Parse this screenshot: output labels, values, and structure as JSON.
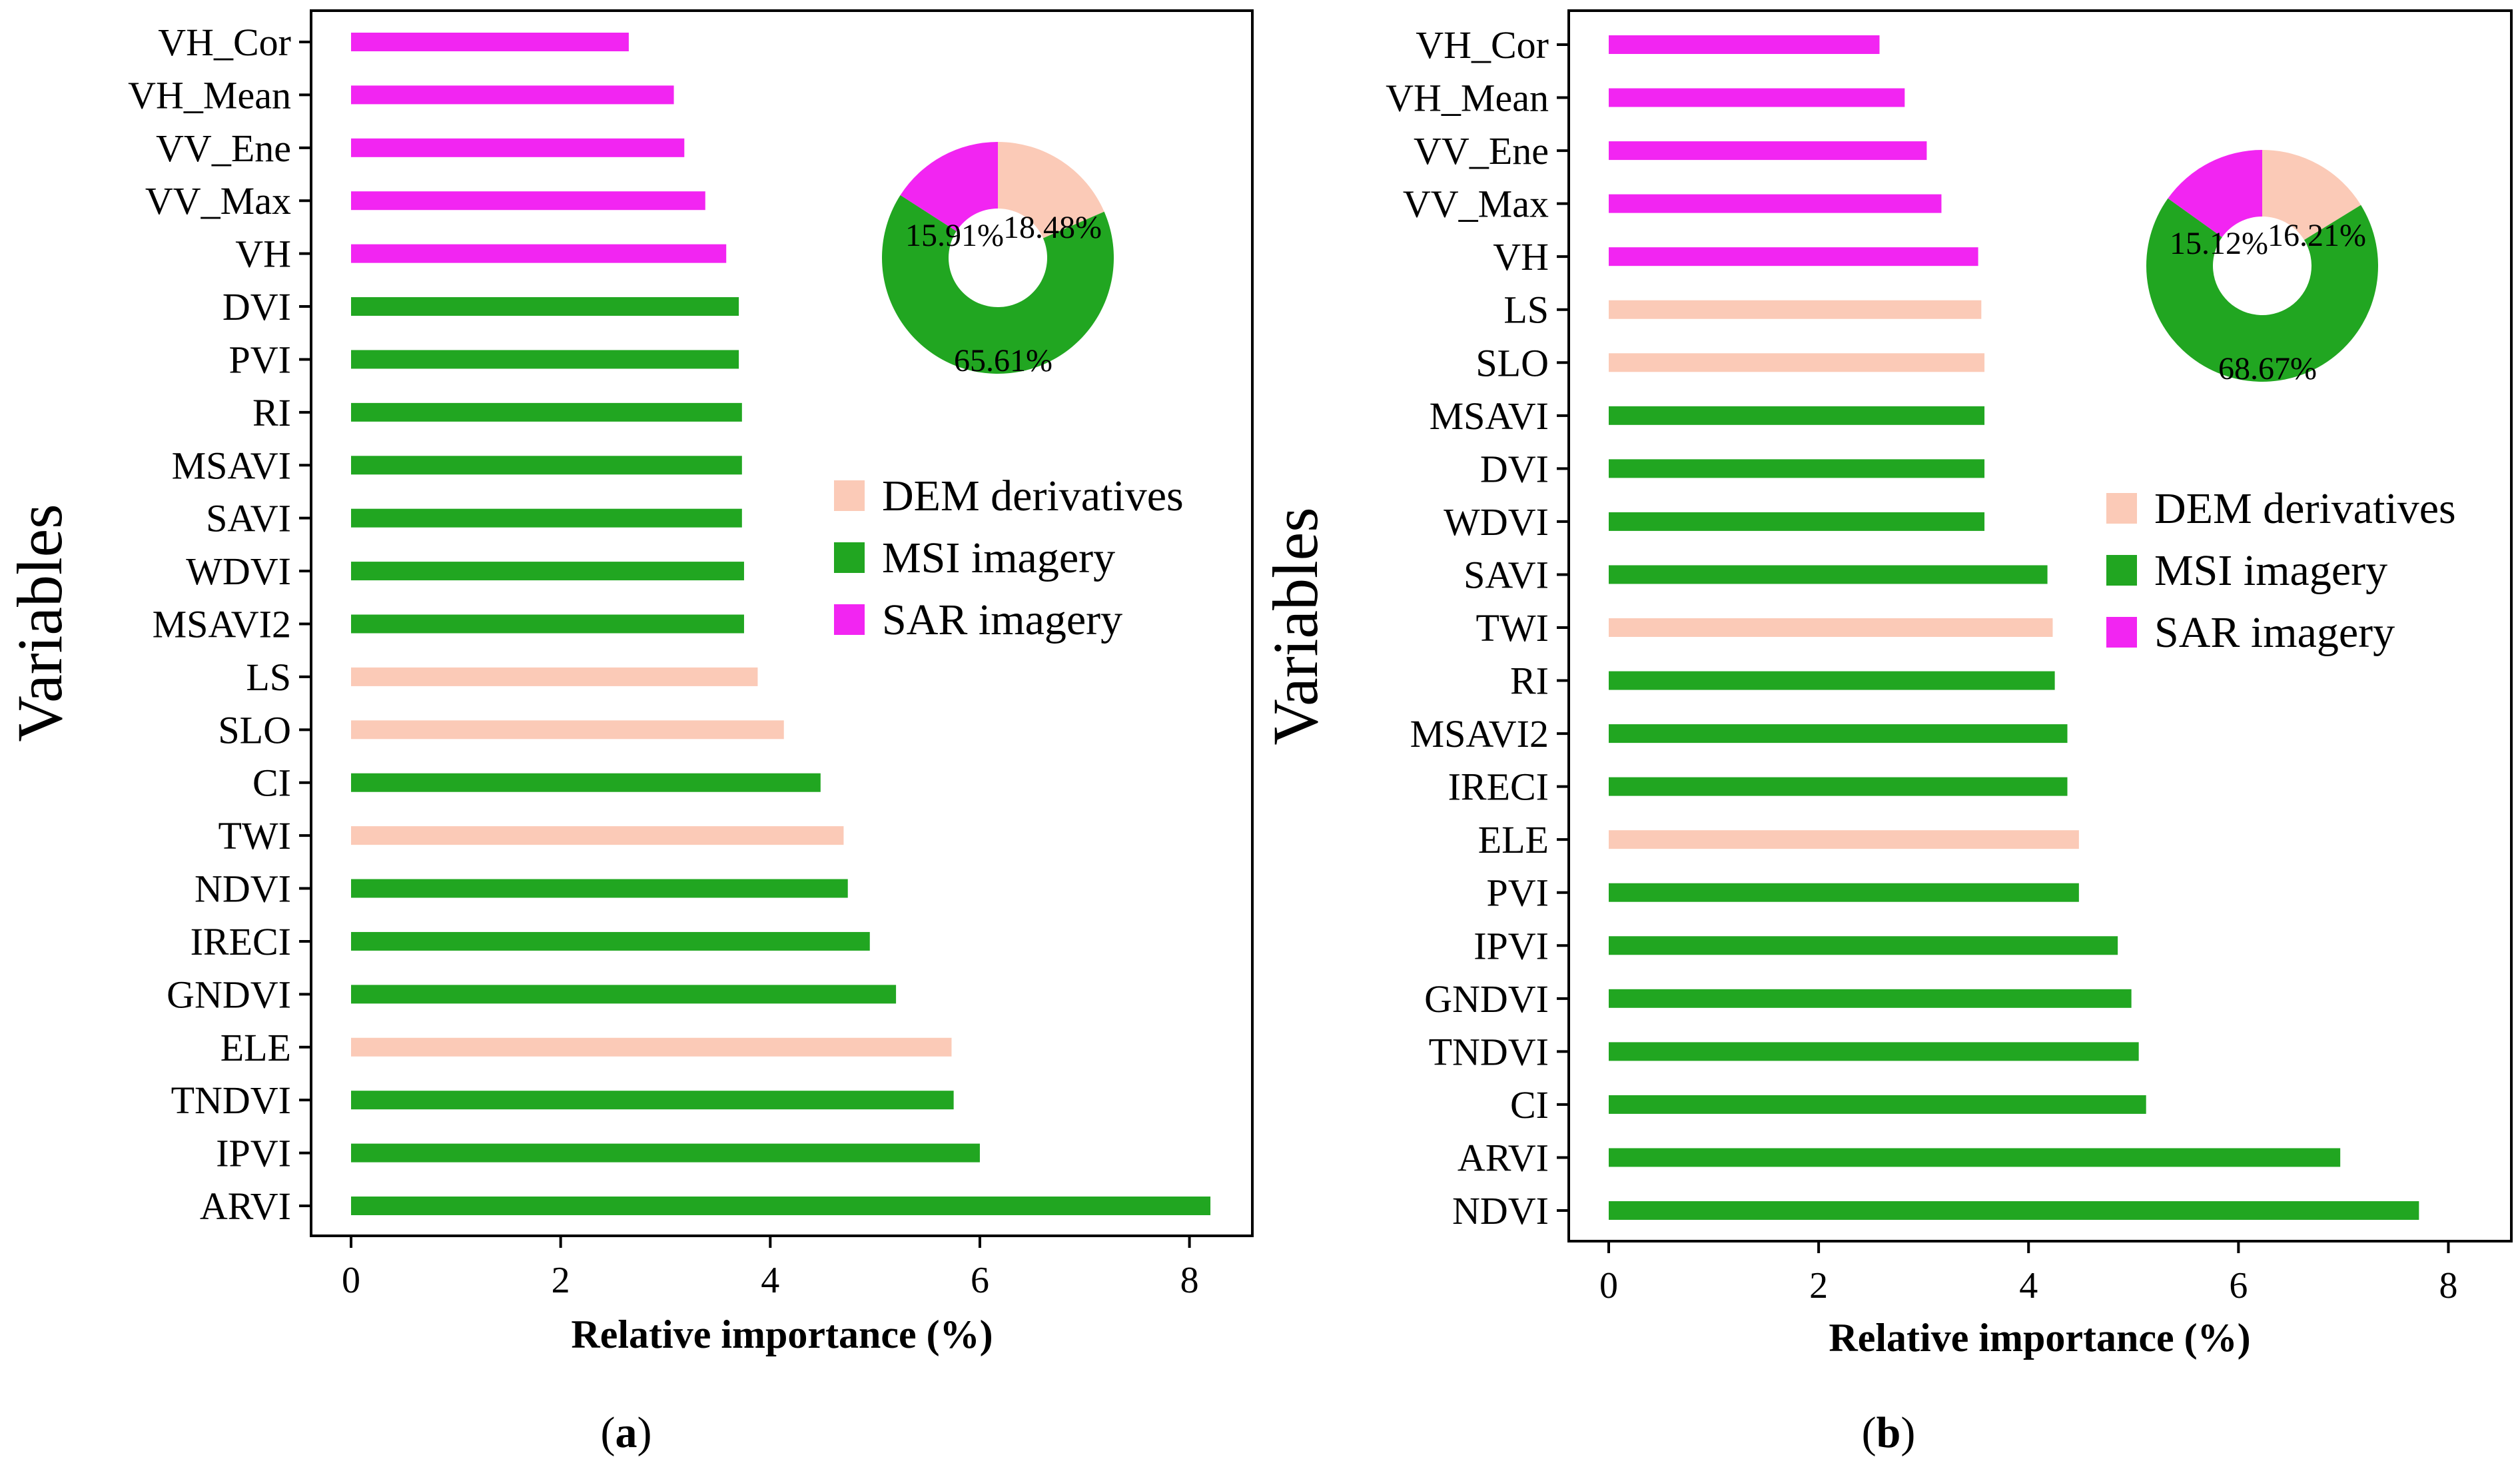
{
  "colors": {
    "dem": "#fbcab7",
    "msi": "#21a621",
    "sar": "#f225f2",
    "axis": "#000000"
  },
  "chart_data": [
    {
      "type": "bar",
      "orientation": "horizontal",
      "panel_label": "a",
      "panel_label_open": "(",
      "panel_label_close": ")",
      "ylabel": "Variables",
      "xlabel": "Relative importance (%)",
      "xlim": [
        0,
        8.6
      ],
      "xticks": [
        0,
        2,
        4,
        6,
        8
      ],
      "xtick_labels": [
        "0",
        "2",
        "4",
        "6",
        "8"
      ],
      "categories": [
        "VH_Cor",
        "VH_Mean",
        "VV_Ene",
        "VV_Max",
        "VH",
        "DVI",
        "PVI",
        "RI",
        "MSAVI",
        "SAVI",
        "WDVI",
        "MSAVI2",
        "LS",
        "SLO",
        "CI",
        "TWI",
        "NDVI",
        "IRECI",
        "GNDVI",
        "ELE",
        "TNDVI",
        "IPVI",
        "ARVI"
      ],
      "values": [
        2.65,
        3.08,
        3.18,
        3.38,
        3.58,
        3.7,
        3.7,
        3.73,
        3.73,
        3.73,
        3.75,
        3.75,
        3.88,
        4.13,
        4.48,
        4.7,
        4.74,
        4.95,
        5.2,
        5.73,
        5.75,
        6.0,
        8.2
      ],
      "groups": [
        "sar",
        "sar",
        "sar",
        "sar",
        "sar",
        "msi",
        "msi",
        "msi",
        "msi",
        "msi",
        "msi",
        "msi",
        "dem",
        "dem",
        "msi",
        "dem",
        "msi",
        "msi",
        "msi",
        "dem",
        "msi",
        "msi",
        "msi"
      ],
      "legend": [
        {
          "key": "dem",
          "label": "DEM derivatives"
        },
        {
          "key": "msi",
          "label": "MSI imagery"
        },
        {
          "key": "sar",
          "label": "SAR imagery"
        }
      ],
      "legend_position": "center-right",
      "donut": {
        "position": "top-right",
        "slices": [
          {
            "key": "dem",
            "value": 18.48,
            "label": "18.48%"
          },
          {
            "key": "msi",
            "value": 65.61,
            "label": "65.61%"
          },
          {
            "key": "sar",
            "value": 15.91,
            "label": "15.91%"
          }
        ]
      }
    },
    {
      "type": "bar",
      "orientation": "horizontal",
      "panel_label": "b",
      "panel_label_open": "(",
      "panel_label_close": ")",
      "ylabel": "Variables",
      "xlabel": "Relative importance (%)",
      "xlim": [
        0,
        8.6
      ],
      "xticks": [
        0,
        2,
        4,
        6,
        8
      ],
      "xtick_labels": [
        "0",
        "2",
        "4",
        "6",
        "8"
      ],
      "categories": [
        "VH_Cor",
        "VH_Mean",
        "VV_Ene",
        "VV_Max",
        "VH",
        "LS",
        "SLO",
        "MSAVI",
        "DVI",
        "WDVI",
        "SAVI",
        "TWI",
        "RI",
        "MSAVI2",
        "IRECI",
        "ELE",
        "PVI",
        "IPVI",
        "GNDVI",
        "TNDVI",
        "CI",
        "ARVI",
        "NDVI"
      ],
      "values": [
        2.58,
        2.82,
        3.03,
        3.17,
        3.52,
        3.55,
        3.58,
        3.58,
        3.58,
        3.58,
        4.18,
        4.23,
        4.25,
        4.37,
        4.37,
        4.48,
        4.48,
        4.85,
        4.98,
        5.05,
        5.12,
        6.97,
        7.72
      ],
      "groups": [
        "sar",
        "sar",
        "sar",
        "sar",
        "sar",
        "dem",
        "dem",
        "msi",
        "msi",
        "msi",
        "msi",
        "dem",
        "msi",
        "msi",
        "msi",
        "dem",
        "msi",
        "msi",
        "msi",
        "msi",
        "msi",
        "msi",
        "msi"
      ],
      "legend": [
        {
          "key": "dem",
          "label": "DEM derivatives"
        },
        {
          "key": "msi",
          "label": "MSI imagery"
        },
        {
          "key": "sar",
          "label": "SAR imagery"
        }
      ],
      "legend_position": "center-right",
      "donut": {
        "position": "top-right",
        "slices": [
          {
            "key": "dem",
            "value": 16.21,
            "label": "16.21%"
          },
          {
            "key": "msi",
            "value": 68.67,
            "label": "68.67%"
          },
          {
            "key": "sar",
            "value": 15.12,
            "label": "15.12%"
          }
        ]
      }
    }
  ]
}
